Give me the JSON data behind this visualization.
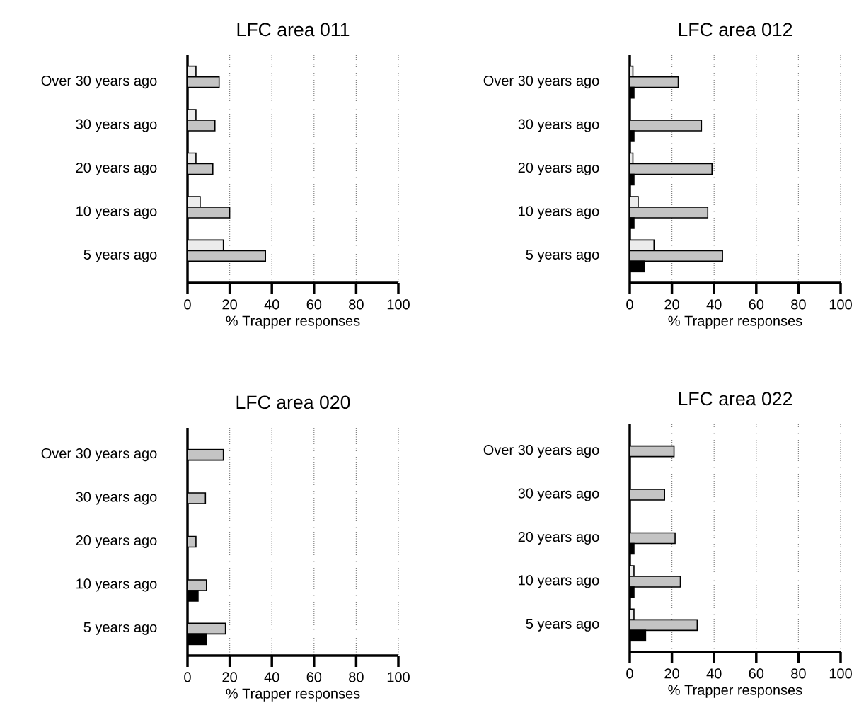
{
  "chart_data": [
    {
      "type": "bar",
      "orientation": "horizontal",
      "title": "LFC area 011",
      "xlabel": "% Trapper responses",
      "categories": [
        "Over 30 years ago",
        "30 years ago",
        "20 years ago",
        "10 years ago",
        "5 years ago"
      ],
      "xlim": [
        0,
        100
      ],
      "xticks": [
        0,
        20,
        40,
        60,
        80,
        100
      ],
      "grid": "x",
      "series": [
        {
          "color": "#ececec",
          "values": [
            4,
            4,
            4,
            6,
            17
          ]
        },
        {
          "color": "#c4c4c4",
          "values": [
            15,
            13,
            12,
            20,
            37
          ]
        },
        {
          "color": "#000000",
          "values": [
            0,
            0,
            0,
            0,
            0
          ]
        }
      ]
    },
    {
      "type": "bar",
      "orientation": "horizontal",
      "title": "LFC area 012",
      "xlabel": "% Trapper responses",
      "categories": [
        "Over 30 years ago",
        "30 years ago",
        "20 years ago",
        "10 years ago",
        "5 years ago"
      ],
      "xlim": [
        0,
        100
      ],
      "xticks": [
        0,
        20,
        40,
        60,
        80,
        100
      ],
      "grid": "x",
      "series": [
        {
          "color": "#ececec",
          "values": [
            1.5,
            0,
            1.5,
            4,
            11.5
          ]
        },
        {
          "color": "#c4c4c4",
          "values": [
            23,
            34,
            39,
            37,
            44
          ]
        },
        {
          "color": "#000000",
          "values": [
            2,
            2,
            2,
            2,
            7
          ]
        }
      ]
    },
    {
      "type": "bar",
      "orientation": "horizontal",
      "title": "LFC area 020",
      "xlabel": "% Trapper responses",
      "categories": [
        "Over 30 years ago",
        "30 years ago",
        "20 years ago",
        "10 years ago",
        "5 years ago"
      ],
      "xlim": [
        0,
        100
      ],
      "xticks": [
        0,
        20,
        40,
        60,
        80,
        100
      ],
      "grid": "x",
      "series": [
        {
          "color": "#ececec",
          "values": [
            0,
            0,
            0,
            0,
            0
          ]
        },
        {
          "color": "#c4c4c4",
          "values": [
            17,
            8.5,
            4,
            9,
            18
          ]
        },
        {
          "color": "#000000",
          "values": [
            0,
            0,
            0,
            5,
            9
          ]
        }
      ]
    },
    {
      "type": "bar",
      "orientation": "horizontal",
      "title": "LFC area 022",
      "xlabel": "% Trapper responses",
      "categories": [
        "Over 30 years ago",
        "30 years ago",
        "20 years ago",
        "10 years ago",
        "5 years ago"
      ],
      "xlim": [
        0,
        100
      ],
      "xticks": [
        0,
        20,
        40,
        60,
        80,
        100
      ],
      "grid": "x",
      "series": [
        {
          "color": "#ececec",
          "values": [
            0,
            0,
            0,
            2,
            2
          ]
        },
        {
          "color": "#c4c4c4",
          "values": [
            21,
            16.5,
            21.5,
            24,
            32
          ]
        },
        {
          "color": "#000000",
          "values": [
            0,
            0,
            2,
            2,
            7.5
          ]
        }
      ]
    }
  ]
}
